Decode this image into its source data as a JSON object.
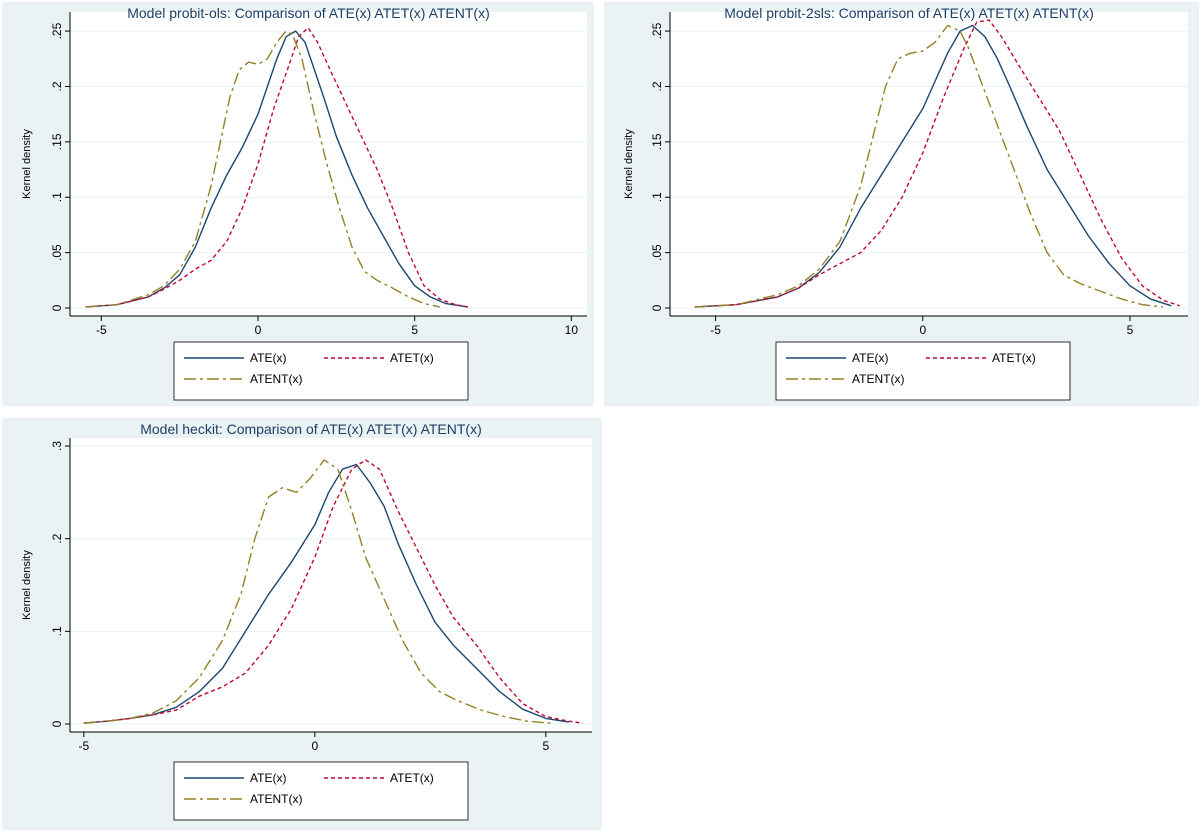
{
  "chart_data": [
    {
      "type": "line",
      "title": "Model probit-ols: Comparison of ATE(x) ATET(x) ATENT(x)",
      "xlabel": "",
      "ylabel": "Kernel density",
      "xlim": [
        -6,
        10.5
      ],
      "ylim": [
        0,
        0.26
      ],
      "xticks": [
        -5,
        0,
        5,
        10
      ],
      "yticks": [
        0,
        0.05,
        0.1,
        0.15,
        0.2,
        0.25
      ],
      "ytick_labels": [
        "0",
        ".05",
        ".1",
        ".15",
        ".2",
        ".25"
      ],
      "grid": true,
      "legend": "bottom",
      "series": [
        {
          "name": "ATE(x)",
          "color": "#1a476f",
          "dash": "none",
          "x": [
            -5.5,
            -4.5,
            -3.5,
            -3,
            -2.5,
            -2,
            -1.5,
            -1,
            -0.5,
            0,
            0.3,
            0.6,
            0.9,
            1.2,
            1.5,
            1.8,
            2.1,
            2.5,
            3,
            3.5,
            4,
            4.5,
            5,
            5.5,
            6,
            6.7
          ],
          "y": [
            0.001,
            0.003,
            0.01,
            0.018,
            0.03,
            0.055,
            0.09,
            0.12,
            0.145,
            0.175,
            0.2,
            0.225,
            0.245,
            0.25,
            0.24,
            0.215,
            0.19,
            0.155,
            0.12,
            0.09,
            0.065,
            0.04,
            0.02,
            0.01,
            0.004,
            0.001
          ]
        },
        {
          "name": "ATET(x)",
          "color": "#c10534",
          "dash": "4,3",
          "x": [
            -5.5,
            -4.5,
            -3.5,
            -3,
            -2.5,
            -2,
            -1.5,
            -1,
            -0.5,
            0,
            0.5,
            1,
            1.3,
            1.6,
            1.9,
            2.3,
            2.8,
            3.3,
            3.8,
            4.3,
            4.8,
            5.3,
            5.8,
            6.3,
            6.7
          ],
          "y": [
            0.001,
            0.003,
            0.01,
            0.017,
            0.025,
            0.035,
            0.043,
            0.06,
            0.09,
            0.13,
            0.18,
            0.22,
            0.245,
            0.253,
            0.24,
            0.215,
            0.185,
            0.155,
            0.125,
            0.09,
            0.05,
            0.02,
            0.008,
            0.003,
            0.001
          ]
        },
        {
          "name": "ATENT(x)",
          "color": "#938126",
          "dash": "12,4,3,4",
          "x": [
            -5.5,
            -4.5,
            -3.5,
            -3,
            -2.5,
            -2,
            -1.5,
            -1.2,
            -0.9,
            -0.6,
            -0.3,
            0,
            0.3,
            0.6,
            0.9,
            1.1,
            1.4,
            1.8,
            2.2,
            2.6,
            3,
            3.4,
            3.8,
            4.3,
            4.8,
            5.3,
            5.8
          ],
          "y": [
            0.001,
            0.003,
            0.012,
            0.02,
            0.035,
            0.06,
            0.11,
            0.15,
            0.19,
            0.215,
            0.222,
            0.22,
            0.225,
            0.24,
            0.25,
            0.247,
            0.225,
            0.175,
            0.13,
            0.09,
            0.055,
            0.033,
            0.025,
            0.018,
            0.01,
            0.004,
            0.001
          ]
        }
      ]
    },
    {
      "type": "line",
      "title": "Model probit-2sls: Comparison of ATE(x) ATET(x) ATENT(x)",
      "xlabel": "",
      "ylabel": "Kernel density",
      "xlim": [
        -6.1,
        6.4
      ],
      "ylim": [
        0,
        0.26
      ],
      "xticks": [
        -5,
        0,
        5
      ],
      "yticks": [
        0,
        0.05,
        0.1,
        0.15,
        0.2,
        0.25
      ],
      "ytick_labels": [
        "0",
        ".05",
        ".1",
        ".15",
        ".2",
        ".25"
      ],
      "grid": true,
      "legend": "bottom",
      "series": [
        {
          "name": "ATE(x)",
          "color": "#1a476f",
          "dash": "none",
          "x": [
            -5.5,
            -4.5,
            -3.5,
            -3,
            -2.5,
            -2,
            -1.5,
            -1,
            -0.5,
            0,
            0.3,
            0.6,
            0.9,
            1.2,
            1.5,
            1.8,
            2.1,
            2.5,
            3,
            3.5,
            4,
            4.5,
            5,
            5.5,
            6
          ],
          "y": [
            0.001,
            0.003,
            0.01,
            0.018,
            0.032,
            0.055,
            0.09,
            0.12,
            0.15,
            0.18,
            0.205,
            0.23,
            0.25,
            0.255,
            0.245,
            0.225,
            0.2,
            0.165,
            0.125,
            0.095,
            0.065,
            0.04,
            0.02,
            0.008,
            0.002
          ]
        },
        {
          "name": "ATET(x)",
          "color": "#c10534",
          "dash": "4,3",
          "x": [
            -5.5,
            -4.5,
            -3.5,
            -3,
            -2.5,
            -2,
            -1.5,
            -1,
            -0.5,
            0,
            0.5,
            1,
            1.3,
            1.6,
            1.9,
            2.3,
            2.8,
            3.3,
            3.8,
            4.3,
            4.8,
            5.3,
            5.8,
            6.2
          ],
          "y": [
            0.001,
            0.003,
            0.01,
            0.018,
            0.03,
            0.04,
            0.05,
            0.07,
            0.1,
            0.14,
            0.19,
            0.235,
            0.258,
            0.26,
            0.245,
            0.22,
            0.19,
            0.16,
            0.12,
            0.08,
            0.045,
            0.02,
            0.007,
            0.002
          ]
        },
        {
          "name": "ATENT(x)",
          "color": "#938126",
          "dash": "12,4,3,4",
          "x": [
            -5.5,
            -4.5,
            -3.5,
            -3,
            -2.5,
            -2,
            -1.5,
            -1.2,
            -0.9,
            -0.6,
            -0.3,
            0,
            0.3,
            0.6,
            0.9,
            1.1,
            1.4,
            1.8,
            2.2,
            2.6,
            3,
            3.4,
            3.8,
            4.3,
            4.8,
            5.3,
            5.8
          ],
          "y": [
            0.001,
            0.003,
            0.012,
            0.02,
            0.035,
            0.06,
            0.11,
            0.155,
            0.2,
            0.225,
            0.23,
            0.232,
            0.24,
            0.255,
            0.25,
            0.235,
            0.205,
            0.165,
            0.125,
            0.085,
            0.05,
            0.03,
            0.022,
            0.015,
            0.008,
            0.003,
            0.001
          ]
        }
      ]
    },
    {
      "type": "line",
      "title": "Model heckit: Comparison of ATE(x) ATET(x) ATENT(x)",
      "xlabel": "",
      "ylabel": "Kernel density",
      "xlim": [
        -5.3,
        6.0
      ],
      "ylim": [
        0,
        0.3
      ],
      "xticks": [
        -5,
        0,
        5
      ],
      "yticks": [
        0,
        0.1,
        0.2,
        0.3
      ],
      "ytick_labels": [
        "0",
        ".1",
        ".2",
        ".3"
      ],
      "grid": true,
      "legend": "bottom",
      "series": [
        {
          "name": "ATE(x)",
          "color": "#1a476f",
          "dash": "none",
          "x": [
            -5,
            -4.5,
            -4,
            -3.5,
            -3,
            -2.5,
            -2,
            -1.5,
            -1,
            -0.5,
            0,
            0.3,
            0.6,
            0.9,
            1.2,
            1.5,
            1.8,
            2.2,
            2.6,
            3,
            3.5,
            4,
            4.5,
            5,
            5.5
          ],
          "y": [
            0.001,
            0.003,
            0.006,
            0.01,
            0.018,
            0.035,
            0.06,
            0.1,
            0.14,
            0.175,
            0.215,
            0.25,
            0.275,
            0.28,
            0.26,
            0.235,
            0.195,
            0.15,
            0.11,
            0.085,
            0.06,
            0.035,
            0.016,
            0.006,
            0.002
          ]
        },
        {
          "name": "ATET(x)",
          "color": "#c10534",
          "dash": "4,3",
          "x": [
            -5,
            -4.5,
            -4,
            -3.5,
            -3,
            -2.5,
            -2,
            -1.5,
            -1,
            -0.5,
            0,
            0.4,
            0.8,
            1.1,
            1.4,
            1.8,
            2.2,
            2.6,
            3,
            3.5,
            4,
            4.5,
            5,
            5.5,
            5.8
          ],
          "y": [
            0.001,
            0.003,
            0.006,
            0.01,
            0.015,
            0.03,
            0.04,
            0.055,
            0.085,
            0.125,
            0.18,
            0.235,
            0.275,
            0.285,
            0.275,
            0.23,
            0.19,
            0.15,
            0.115,
            0.085,
            0.05,
            0.022,
            0.008,
            0.003,
            0.001
          ]
        },
        {
          "name": "ATENT(x)",
          "color": "#938126",
          "dash": "12,4,3,4",
          "x": [
            -5,
            -4.5,
            -4,
            -3.5,
            -3,
            -2.5,
            -2,
            -1.6,
            -1.3,
            -1,
            -0.7,
            -0.4,
            -0.1,
            0.2,
            0.5,
            0.8,
            1.1,
            1.5,
            1.9,
            2.3,
            2.7,
            3.1,
            3.6,
            4.1,
            4.6,
            5.1
          ],
          "y": [
            0.001,
            0.003,
            0.006,
            0.012,
            0.025,
            0.05,
            0.09,
            0.14,
            0.2,
            0.245,
            0.255,
            0.25,
            0.265,
            0.285,
            0.275,
            0.23,
            0.18,
            0.135,
            0.09,
            0.055,
            0.035,
            0.025,
            0.015,
            0.008,
            0.003,
            0.001
          ]
        }
      ]
    }
  ]
}
